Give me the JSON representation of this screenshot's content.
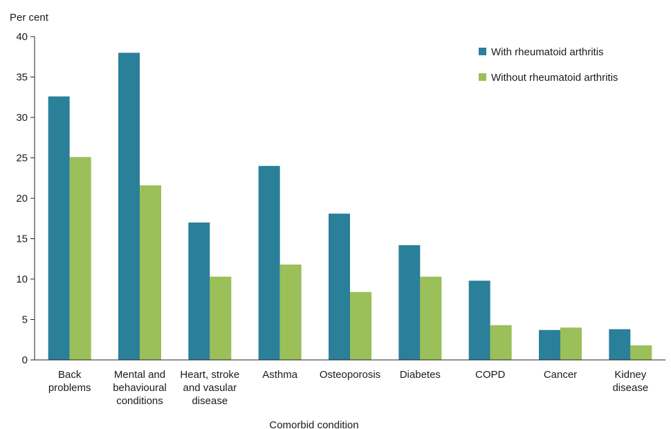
{
  "chart_data": {
    "type": "bar",
    "title": "",
    "ylabel": "Per cent",
    "xlabel": "Comorbid condition",
    "ylim": [
      0,
      40
    ],
    "yticks": [
      0,
      5,
      10,
      15,
      20,
      25,
      30,
      35,
      40
    ],
    "grid": false,
    "legend_position": "top-right",
    "categories": [
      [
        "Back",
        "problems"
      ],
      [
        "Mental and",
        "behavioural",
        "conditions"
      ],
      [
        "Heart, stroke",
        "and vasular",
        "disease"
      ],
      [
        "Asthma"
      ],
      [
        "Osteoporosis"
      ],
      [
        "Diabetes"
      ],
      [
        "COPD"
      ],
      [
        "Cancer"
      ],
      [
        "Kidney",
        "disease"
      ]
    ],
    "series": [
      {
        "name": "With rheumatoid arthritis",
        "color": "#2a7f99",
        "values": [
          32.6,
          38.0,
          17.0,
          24.0,
          18.1,
          14.2,
          9.8,
          3.7,
          3.8
        ]
      },
      {
        "name": "Without rheumatoid arthritis",
        "color": "#9bbf59",
        "values": [
          25.1,
          21.6,
          10.3,
          11.8,
          8.4,
          10.3,
          4.3,
          4.0,
          1.8
        ]
      }
    ]
  }
}
